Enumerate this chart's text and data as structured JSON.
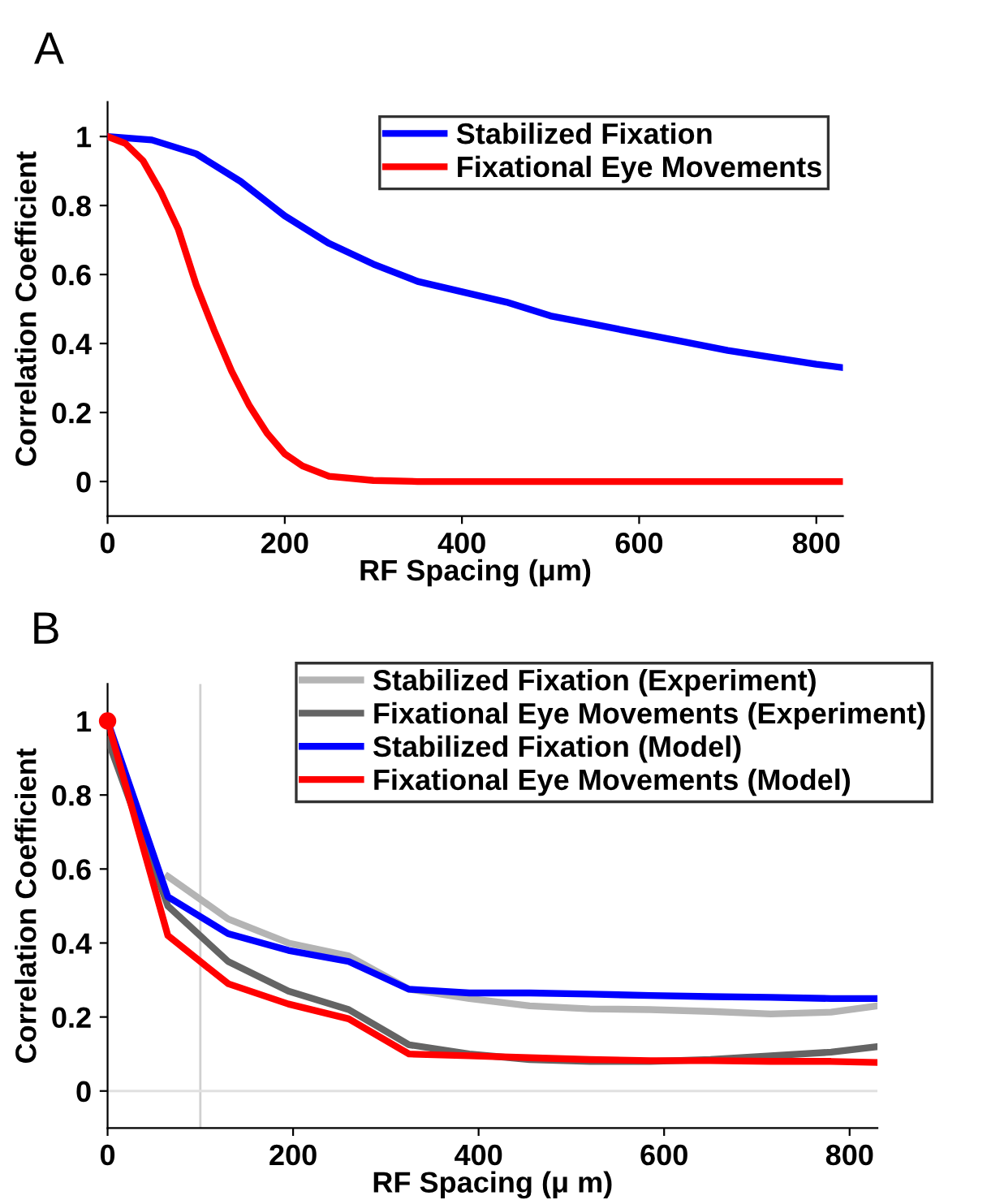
{
  "chart_data": [
    {
      "type": "line",
      "title": "A",
      "xlabel": "RF Spacing (μm)",
      "ylabel": "Correlation Coefficient",
      "xlim": [
        0,
        830
      ],
      "ylim": [
        -0.1,
        1.1
      ],
      "xticks": [
        0,
        200,
        400,
        600,
        800
      ],
      "yticks": [
        0,
        0.2,
        0.4,
        0.6,
        0.8,
        1
      ],
      "grid": false,
      "legend": "top right",
      "line_style": "solid",
      "series": [
        {
          "name": "Stabilized Fixation",
          "color": "#0000ff",
          "x": [
            0,
            50,
            100,
            150,
            200,
            250,
            300,
            350,
            400,
            450,
            500,
            550,
            600,
            650,
            700,
            750,
            800,
            830
          ],
          "values": [
            1,
            0.99,
            0.95,
            0.87,
            0.77,
            0.69,
            0.63,
            0.58,
            0.55,
            0.52,
            0.48,
            0.455,
            0.43,
            0.405,
            0.38,
            0.36,
            0.34,
            0.33
          ]
        },
        {
          "name": "Fixational Eye Movements",
          "color": "#ff0000",
          "x": [
            0,
            20,
            40,
            60,
            80,
            100,
            120,
            140,
            160,
            180,
            200,
            220,
            250,
            300,
            350,
            830
          ],
          "values": [
            1,
            0.98,
            0.93,
            0.84,
            0.73,
            0.57,
            0.44,
            0.32,
            0.22,
            0.14,
            0.08,
            0.045,
            0.015,
            0.003,
            0,
            0
          ]
        }
      ]
    },
    {
      "type": "line",
      "title": "B",
      "xlabel": "RF Spacing (μ m)",
      "ylabel": "Correlation Coefficient",
      "xlim": [
        0,
        830
      ],
      "ylim": [
        -0.1,
        1.1
      ],
      "xticks": [
        0,
        200,
        400,
        600,
        800
      ],
      "yticks": [
        0,
        0.2,
        0.4,
        0.6,
        0.8,
        1
      ],
      "grid": false,
      "legend": "top right",
      "line_style": "solid",
      "ref_lines": [
        {
          "axis": "x",
          "value": 100,
          "color": "#d0d0d0"
        },
        {
          "axis": "y",
          "value": 0,
          "color": "#e0e0e0"
        }
      ],
      "series": [
        {
          "name": "Stabilized Fixation (Experiment)",
          "color": "#b4b4b4",
          "x": [
            65,
            130,
            195,
            260,
            325,
            390,
            455,
            520,
            585,
            650,
            715,
            780,
            830
          ],
          "values": [
            0.58,
            0.465,
            0.4,
            0.365,
            0.275,
            0.25,
            0.23,
            0.222,
            0.22,
            0.215,
            0.208,
            0.213,
            0.23
          ]
        },
        {
          "name": "Fixational Eye Movements (Experiment)",
          "color": "#646464",
          "x": [
            0,
            65,
            130,
            195,
            260,
            325,
            390,
            455,
            520,
            585,
            650,
            715,
            780,
            830
          ],
          "values": [
            0.95,
            0.5,
            0.35,
            0.27,
            0.22,
            0.125,
            0.1,
            0.085,
            0.08,
            0.08,
            0.085,
            0.095,
            0.105,
            0.12
          ]
        },
        {
          "name": "Stabilized Fixation (Model)",
          "color": "#0000ff",
          "x": [
            0,
            65,
            130,
            195,
            260,
            325,
            390,
            455,
            520,
            585,
            650,
            715,
            780,
            830
          ],
          "values": [
            1,
            0.525,
            0.425,
            0.38,
            0.35,
            0.275,
            0.265,
            0.265,
            0.262,
            0.258,
            0.255,
            0.253,
            0.25,
            0.25
          ]
        },
        {
          "name": "Fixational Eye Movements (Model)",
          "color": "#ff0000",
          "x": [
            0,
            65,
            130,
            195,
            260,
            325,
            390,
            455,
            520,
            585,
            650,
            715,
            780,
            830
          ],
          "values": [
            1,
            0.42,
            0.29,
            0.235,
            0.195,
            0.1,
            0.095,
            0.09,
            0.085,
            0.082,
            0.082,
            0.08,
            0.08,
            0.077
          ]
        },
        {
          "type": "scatter",
          "marker": "circle",
          "color": "#ff0000",
          "x": [
            0
          ],
          "values": [
            1
          ]
        }
      ]
    }
  ]
}
